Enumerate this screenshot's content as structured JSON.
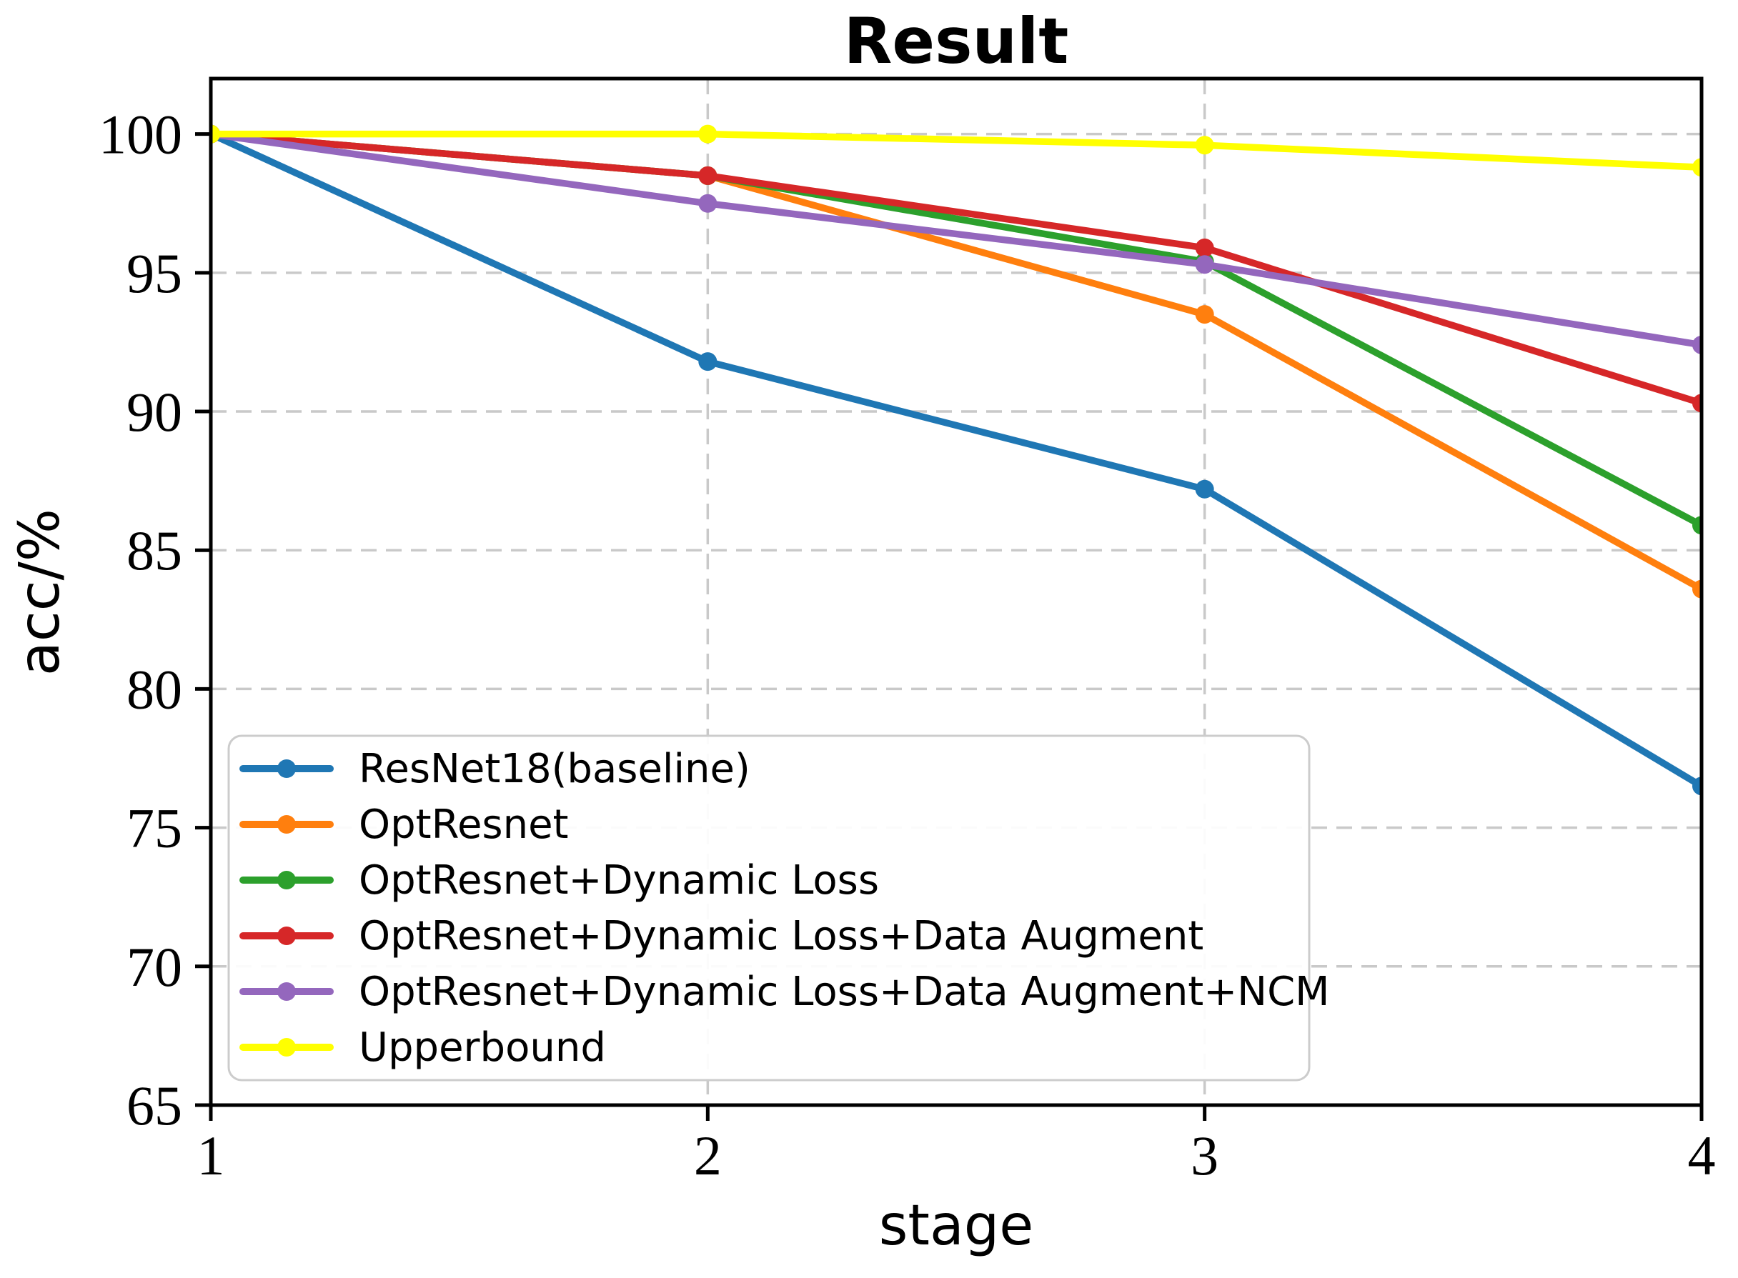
{
  "chart_data": {
    "type": "line",
    "title": "Result",
    "xlabel": "stage",
    "ylabel": "acc/%",
    "x": [
      1,
      2,
      3,
      4
    ],
    "xlim": [
      1,
      4
    ],
    "ylim": [
      65,
      102
    ],
    "xticks": [
      1,
      2,
      3,
      4
    ],
    "yticks": [
      65,
      70,
      75,
      80,
      85,
      90,
      95,
      100
    ],
    "grid": "dashed",
    "grid_color": "#c9c9c9",
    "legend_position": "lower left",
    "series": [
      {
        "name": "ResNet18(baseline)",
        "color": "#1f77b4",
        "values": [
          100,
          91.8,
          87.2,
          76.5
        ]
      },
      {
        "name": "OptResnet",
        "color": "#ff7f0e",
        "values": [
          100,
          98.5,
          93.5,
          83.6
        ]
      },
      {
        "name": "OptResnet+Dynamic Loss",
        "color": "#2ca02c",
        "values": [
          100,
          98.5,
          95.4,
          85.9
        ]
      },
      {
        "name": "OptResnet+Dynamic Loss+Data Augment",
        "color": "#d62728",
        "values": [
          100,
          98.5,
          95.9,
          90.3
        ]
      },
      {
        "name": "OptResnet+Dynamic Loss+Data Augment+NCM",
        "color": "#9467bd",
        "values": [
          100,
          97.5,
          95.3,
          92.4
        ]
      },
      {
        "name": "Upperbound",
        "color": "#ffff00",
        "values": [
          100,
          100,
          99.6,
          98.8
        ]
      }
    ]
  }
}
